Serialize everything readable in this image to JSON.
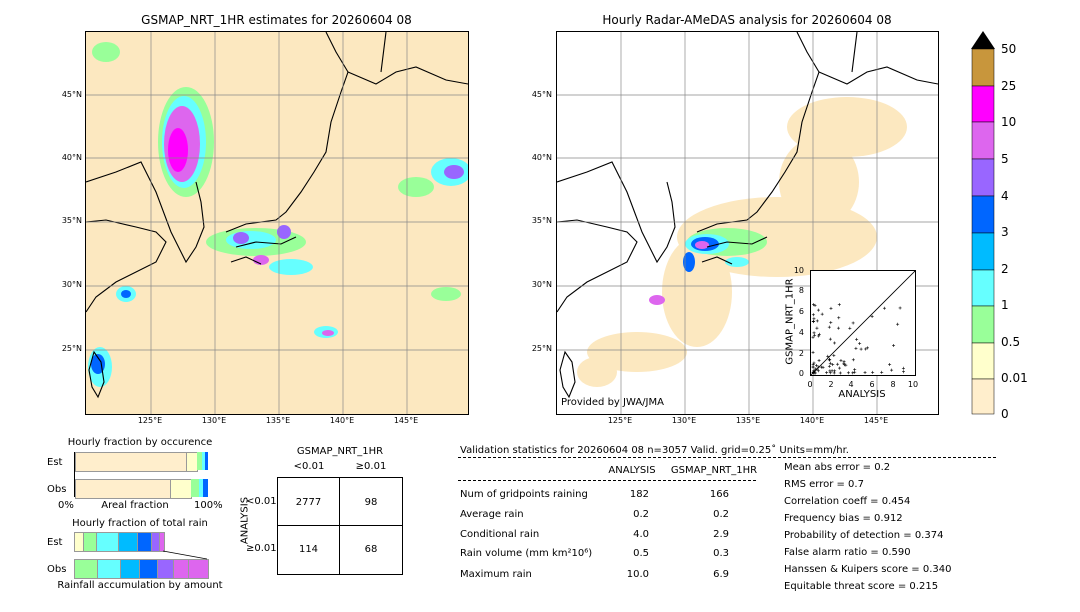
{
  "left_map": {
    "title": "GSMAP_NRT_1HR estimates for 20260604 08",
    "lat_ticks": [
      "45°N",
      "40°N",
      "35°N",
      "30°N",
      "25°N"
    ],
    "lon_ticks": [
      "125°E",
      "130°E",
      "135°E",
      "140°E",
      "145°E"
    ]
  },
  "right_map": {
    "title": "Hourly Radar-AMeDAS analysis for 20260604 08",
    "lat_ticks": [
      "45°N",
      "40°N",
      "35°N",
      "30°N",
      "25°N"
    ],
    "lon_ticks": [
      "125°E",
      "130°E",
      "135°E",
      "140°E",
      "145°E"
    ],
    "credit": "Provided by JWA/JMA"
  },
  "scatter": {
    "ylabel": "GSMAP_NRT_1HR",
    "xlabel": "ANALYSIS",
    "x_ticks": [
      "0",
      "2",
      "4",
      "6",
      "8",
      "10"
    ],
    "y_ticks": [
      "0",
      "2",
      "4",
      "6",
      "8",
      "10"
    ]
  },
  "colorbar": {
    "labels": [
      "50",
      "25",
      "10",
      "5",
      "4",
      "3",
      "2",
      "1",
      "0.5",
      "0.01",
      "0"
    ],
    "colors": [
      "#c8963c",
      "#ff00ff",
      "#dd66ee",
      "#9966ff",
      "#0066ff",
      "#00bbff",
      "#66ffff",
      "#99ff99",
      "#ffffcc",
      "#ffeecc"
    ]
  },
  "occurrence": {
    "title": "Hourly fraction by occurence",
    "row_est": "Est",
    "row_obs": "Obs",
    "axis_left": "0%",
    "axis_mid": "Areal fraction",
    "axis_right": "100%"
  },
  "total_rain": {
    "title": "Hourly fraction of total rain",
    "row_est": "Est",
    "row_obs": "Obs",
    "footer": "Rainfall accumulation by amount"
  },
  "contingency": {
    "title": "GSMAP_NRT_1HR",
    "col_lt": "<0.01",
    "col_ge": "≥0.01",
    "row_axis": "ANALYSIS",
    "row_lt": "<0.01",
    "row_ge": "≥0.01",
    "a": "2777",
    "b": "98",
    "c": "114",
    "d": "68"
  },
  "validation": {
    "header": "Validation statistics for 20260604 08  n=3057 Valid. grid=0.25˚ Units=mm/hr.",
    "col_analysis": "ANALYSIS",
    "col_gsmap": "GSMAP_NRT_1HR",
    "rows": [
      {
        "label": "Num of gridpoints raining",
        "analysis": "182",
        "gsmap": "166"
      },
      {
        "label": "Average rain",
        "analysis": "0.2",
        "gsmap": "0.2"
      },
      {
        "label": "Conditional rain",
        "analysis": "4.0",
        "gsmap": "2.9"
      },
      {
        "label": "Rain volume (mm km²10⁶)",
        "analysis": "0.5",
        "gsmap": "0.3"
      },
      {
        "label": "Maximum rain",
        "analysis": "10.0",
        "gsmap": "6.9"
      }
    ],
    "stats": [
      "Mean abs error =    0.2",
      "RMS error =    0.7",
      "Correlation coeff =  0.454",
      "Frequency bias =  0.912",
      "Probability of detection =  0.374",
      "False alarm ratio =  0.590",
      "Hanssen & Kuipers score =  0.340",
      "Equitable threat score =  0.215"
    ]
  }
}
